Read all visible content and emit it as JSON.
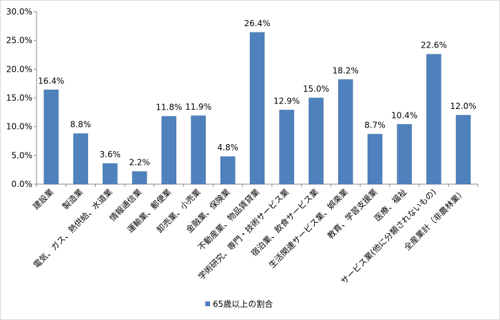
{
  "chart_data": {
    "type": "bar",
    "categories": [
      "建設業",
      "製造業",
      "電気、ガス、熱供給、水道業",
      "情報通信業",
      "運輸業、郵便業",
      "卸売業、小売業",
      "金融業、保険業",
      "不動産業、物品賃貸業",
      "学術研究、専門・技術サービス業",
      "宿泊業、飲食サービス業",
      "生活関連サービス業、娯楽業",
      "教育、学習支援業",
      "医療、福祉",
      "サービス業(他に分類されないもの)",
      "全産業計（非農林業）"
    ],
    "series": [
      {
        "name": "65歳以上の割合",
        "values": [
          16.4,
          8.8,
          3.6,
          2.2,
          11.8,
          11.9,
          4.8,
          26.4,
          12.9,
          15.0,
          18.2,
          8.7,
          10.4,
          22.6,
          12.0
        ],
        "labels": [
          "16.4%",
          "8.8%",
          "3.6%",
          "2.2%",
          "11.8%",
          "11.9%",
          "4.8%",
          "26.4%",
          "12.9%",
          "15.0%",
          "18.2%",
          "8.7%",
          "10.4%",
          "22.6%",
          "12.0%"
        ]
      }
    ],
    "yticks": [
      {
        "value": 0,
        "label": "0.0%"
      },
      {
        "value": 5,
        "label": "5.0%"
      },
      {
        "value": 10,
        "label": "10.0%"
      },
      {
        "value": 15,
        "label": "15.0%"
      },
      {
        "value": 20,
        "label": "20.0%"
      },
      {
        "value": 25,
        "label": "25.0%"
      },
      {
        "value": 30,
        "label": "30.0%"
      }
    ],
    "ylim": [
      0,
      30
    ],
    "grid": false,
    "legend_position": "bottom",
    "colors": {
      "bar": "#4f81bd",
      "bar_edge": "#3a6ea5",
      "axis": "#868686"
    }
  }
}
